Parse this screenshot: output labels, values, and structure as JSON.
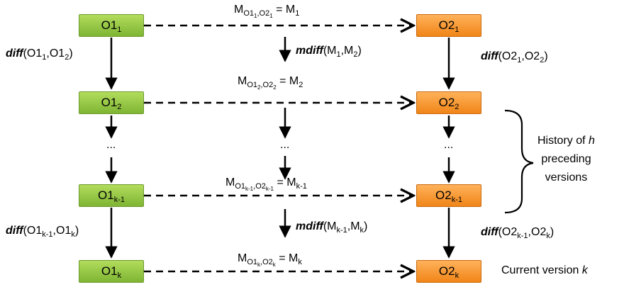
{
  "nodes": {
    "o1_1": {
      "base": "O1",
      "sub": "1"
    },
    "o1_2": {
      "base": "O1",
      "sub": "2"
    },
    "o1_k1": {
      "base": "O1",
      "sub": "k-1"
    },
    "o1_k": {
      "base": "O1",
      "sub": "k"
    },
    "o2_1": {
      "base": "O2",
      "sub": "1"
    },
    "o2_2": {
      "base": "O2",
      "sub": "2"
    },
    "o2_k1": {
      "base": "O2",
      "sub": "k-1"
    },
    "o2_k": {
      "base": "O2",
      "sub": "k"
    }
  },
  "ellipsis": "...",
  "history_label": [
    "History of ",
    "h",
    "preceding",
    "versions"
  ],
  "current_label": [
    "Current version ",
    "k"
  ],
  "diff_word": "diff",
  "mdiff_word": "mdiff",
  "letters": {
    "M": "M",
    "open": "(",
    "close": ")",
    "comma": ",",
    "eq": " = ",
    "o1": "O1",
    "o2": "O2"
  },
  "subs": {
    "one": "1",
    "two": "2",
    "k1": "k-1",
    "k": "k"
  }
}
